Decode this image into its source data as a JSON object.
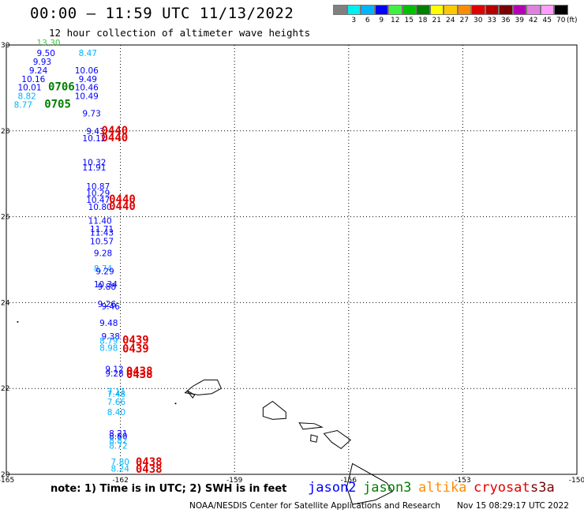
{
  "title": "00:00 – 11:59 UTC 11/13/2022",
  "subtitle": "12 hour collection of altimeter wave heights",
  "colorbar": {
    "colors": [
      "#808080",
      "#00f0f0",
      "#00b4ff",
      "#0000ff",
      "#40f040",
      "#00c000",
      "#008000",
      "#ffff00",
      "#ffc800",
      "#ff8c00",
      "#e00000",
      "#b40000",
      "#7a0000",
      "#b400b4",
      "#e080e0",
      "#ff9cff",
      "#000000"
    ],
    "labels": [
      "",
      "3",
      "6",
      "9",
      "12",
      "15",
      "18",
      "21",
      "24",
      "27",
      "30",
      "33",
      "36",
      "39",
      "42",
      "45",
      "70"
    ],
    "unit": "(ft)"
  },
  "axes": {
    "lon_ticks": [
      "-165",
      "-162",
      "-159",
      "-156",
      "-153",
      "-150"
    ],
    "lat_ticks": [
      "30",
      "28",
      "26",
      "24",
      "22",
      "20"
    ]
  },
  "colors": {
    "jason2": "#0000ff",
    "jason3": "#008000",
    "altika": "#ff8c00",
    "cryosat": "#e00000",
    "s3a": "#7a0000",
    "light_blue": "#00b4ff",
    "green": "#40c040"
  },
  "values": [
    {
      "text": "13.30",
      "lon": -164.2,
      "lat": 29.98,
      "c": "green"
    },
    {
      "text": "9.50",
      "lon": -164.2,
      "lat": 29.74,
      "c": "jason2"
    },
    {
      "text": "8.47",
      "lon": -163.1,
      "lat": 29.74,
      "c": "light_blue"
    },
    {
      "text": "9.93",
      "lon": -164.3,
      "lat": 29.54,
      "c": "jason2"
    },
    {
      "text": "9.24",
      "lon": -164.4,
      "lat": 29.34,
      "c": "jason2"
    },
    {
      "text": "10.06",
      "lon": -163.2,
      "lat": 29.34,
      "c": "jason2"
    },
    {
      "text": "10.16",
      "lon": -164.6,
      "lat": 29.14,
      "c": "jason2"
    },
    {
      "text": "9.49",
      "lon": -163.1,
      "lat": 29.14,
      "c": "jason2"
    },
    {
      "text": "10.01",
      "lon": -164.7,
      "lat": 28.94,
      "c": "jason2"
    },
    {
      "text": "10.46",
      "lon": -163.2,
      "lat": 28.94,
      "c": "jason2"
    },
    {
      "text": "8.82",
      "lon": -164.7,
      "lat": 28.74,
      "c": "light_blue"
    },
    {
      "text": "10.49",
      "lon": -163.2,
      "lat": 28.74,
      "c": "jason2"
    },
    {
      "text": "8.77",
      "lon": -164.8,
      "lat": 28.54,
      "c": "light_blue"
    },
    {
      "text": "9.73",
      "lon": -163.0,
      "lat": 28.34,
      "c": "jason2"
    },
    {
      "text": "9.43",
      "lon": -162.9,
      "lat": 27.92,
      "c": "jason2"
    },
    {
      "text": "10.12",
      "lon": -163.0,
      "lat": 27.76,
      "c": "jason2"
    },
    {
      "text": "10.32",
      "lon": -163.0,
      "lat": 27.2,
      "c": "jason2"
    },
    {
      "text": "11.91",
      "lon": -163.0,
      "lat": 27.08,
      "c": "jason2"
    },
    {
      "text": "10.87",
      "lon": -162.9,
      "lat": 26.64,
      "c": "jason2"
    },
    {
      "text": "10.29",
      "lon": -162.9,
      "lat": 26.48,
      "c": "jason2"
    },
    {
      "text": "10.47",
      "lon": -162.9,
      "lat": 26.32,
      "c": "jason2"
    },
    {
      "text": "10.80",
      "lon": -162.85,
      "lat": 26.16,
      "c": "jason2"
    },
    {
      "text": "11.40",
      "lon": -162.85,
      "lat": 25.84,
      "c": "jason2"
    },
    {
      "text": "11.71",
      "lon": -162.8,
      "lat": 25.64,
      "c": "jason2"
    },
    {
      "text": "11.43",
      "lon": -162.8,
      "lat": 25.56,
      "c": "jason2"
    },
    {
      "text": "10.57",
      "lon": -162.8,
      "lat": 25.36,
      "c": "jason2"
    },
    {
      "text": "9.28",
      "lon": -162.7,
      "lat": 25.08,
      "c": "jason2"
    },
    {
      "text": "8.74",
      "lon": -162.7,
      "lat": 24.72,
      "c": "light_blue"
    },
    {
      "text": "9.29",
      "lon": -162.65,
      "lat": 24.66,
      "c": "jason2"
    },
    {
      "text": "10.34",
      "lon": -162.7,
      "lat": 24.36,
      "c": "jason2"
    },
    {
      "text": "9.88",
      "lon": -162.6,
      "lat": 24.3,
      "c": "jason2"
    },
    {
      "text": "9.26",
      "lon": -162.6,
      "lat": 23.9,
      "c": "jason2"
    },
    {
      "text": "9.46",
      "lon": -162.5,
      "lat": 23.84,
      "c": "jason2"
    },
    {
      "text": "9.48",
      "lon": -162.55,
      "lat": 23.46,
      "c": "jason2"
    },
    {
      "text": "9.38",
      "lon": -162.5,
      "lat": 23.14,
      "c": "jason2"
    },
    {
      "text": "8.79",
      "lon": -162.55,
      "lat": 23.04,
      "c": "light_blue"
    },
    {
      "text": "8.98",
      "lon": -162.55,
      "lat": 22.88,
      "c": "light_blue"
    },
    {
      "text": "9.12",
      "lon": -162.4,
      "lat": 22.38,
      "c": "jason2"
    },
    {
      "text": "9.28",
      "lon": -162.4,
      "lat": 22.28,
      "c": "jason2"
    },
    {
      "text": "7.11",
      "lon": -162.35,
      "lat": 21.86,
      "c": "light_blue"
    },
    {
      "text": "7.48",
      "lon": -162.35,
      "lat": 21.8,
      "c": "light_blue"
    },
    {
      "text": "7.66",
      "lon": -162.35,
      "lat": 21.62,
      "c": "light_blue"
    },
    {
      "text": "8.40",
      "lon": -162.35,
      "lat": 21.38,
      "c": "light_blue"
    },
    {
      "text": "8.21",
      "lon": -162.3,
      "lat": 20.88,
      "c": "jason2"
    },
    {
      "text": "8.80",
      "lon": -162.3,
      "lat": 20.82,
      "c": "jason2"
    },
    {
      "text": "8.82",
      "lon": -162.3,
      "lat": 20.72,
      "c": "light_blue"
    },
    {
      "text": "8.72",
      "lon": -162.3,
      "lat": 20.6,
      "c": "light_blue"
    },
    {
      "text": "7.80",
      "lon": -162.25,
      "lat": 20.22,
      "c": "light_blue"
    },
    {
      "text": "8.24",
      "lon": -162.25,
      "lat": 20.06,
      "c": "light_blue"
    }
  ],
  "times": [
    {
      "text": "0706",
      "lon": -163.9,
      "lat": 28.94,
      "c": "jason3"
    },
    {
      "text": "0705",
      "lon": -164.0,
      "lat": 28.54,
      "c": "jason3"
    },
    {
      "text": "0440",
      "lon": -162.5,
      "lat": 27.92,
      "c": "cryosat"
    },
    {
      "text": "0440",
      "lon": -162.5,
      "lat": 27.76,
      "c": "cryosat"
    },
    {
      "text": "0440",
      "lon": -162.3,
      "lat": 26.32,
      "c": "cryosat"
    },
    {
      "text": "0440",
      "lon": -162.3,
      "lat": 26.16,
      "c": "cryosat"
    },
    {
      "text": "0439",
      "lon": -161.95,
      "lat": 23.04,
      "c": "cryosat"
    },
    {
      "text": "0439",
      "lon": -161.95,
      "lat": 22.84,
      "c": "cryosat"
    },
    {
      "text": "0438",
      "lon": -161.85,
      "lat": 22.32,
      "c": "cryosat"
    },
    {
      "text": "0438",
      "lon": -161.85,
      "lat": 22.24,
      "c": "cryosat"
    },
    {
      "text": "0438",
      "lon": -161.6,
      "lat": 20.2,
      "c": "cryosat"
    },
    {
      "text": "0438",
      "lon": -161.6,
      "lat": 20.04,
      "c": "cryosat"
    }
  ],
  "note": "note: 1) Time is in UTC; 2) SWH is in feet",
  "legend": [
    "jason2",
    "jason3",
    "altika",
    "cryosat",
    "s3a"
  ],
  "footer": "NOAA/NESDIS Center for Satellite Applications and Research",
  "footer_time": "Nov 15 08:29:17 UTC 2022"
}
